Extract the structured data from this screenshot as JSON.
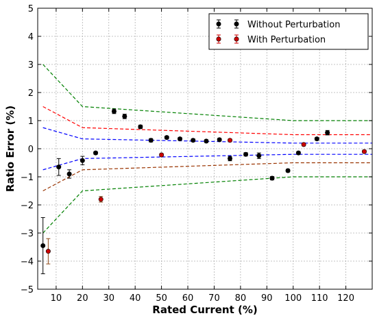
{
  "chart_data": {
    "type": "scatter",
    "title": "",
    "xlabel": "Rated Current (%)",
    "ylabel": "Ratio Error (%)",
    "xlim": [
      3,
      130
    ],
    "ylim": [
      -5,
      5
    ],
    "xticks": [
      10,
      20,
      30,
      40,
      50,
      60,
      70,
      80,
      90,
      100,
      110,
      120
    ],
    "yticks": [
      -5,
      -4,
      -3,
      -2,
      -1,
      0,
      1,
      2,
      3,
      4,
      5
    ],
    "grid": true,
    "legend_position": "top-right",
    "colors": {
      "without": "#000000",
      "with": "#cc0000",
      "outer_limit": "#008000",
      "mid_limit": "#ff0000",
      "inner_limit": "#0000ff",
      "lower_mid_limit": "#993300"
    },
    "series": [
      {
        "name": "Without Perturbation",
        "color": "#000000",
        "points": [
          {
            "x": 5,
            "y": -3.45,
            "err": 1.0
          },
          {
            "x": 11,
            "y": -0.65,
            "err": 0.3
          },
          {
            "x": 15,
            "y": -0.9,
            "err": 0.15
          },
          {
            "x": 20,
            "y": -0.42,
            "err": 0.15
          },
          {
            "x": 25,
            "y": -0.15,
            "err": 0.05
          },
          {
            "x": 32,
            "y": 1.33,
            "err": 0.08
          },
          {
            "x": 36,
            "y": 1.15,
            "err": 0.08
          },
          {
            "x": 42,
            "y": 0.78,
            "err": 0.06
          },
          {
            "x": 46,
            "y": 0.3,
            "err": 0.06
          },
          {
            "x": 52,
            "y": 0.4,
            "err": 0.05
          },
          {
            "x": 57,
            "y": 0.35,
            "err": 0.05
          },
          {
            "x": 62,
            "y": 0.3,
            "err": 0.05
          },
          {
            "x": 67,
            "y": 0.27,
            "err": 0.05
          },
          {
            "x": 72,
            "y": 0.32,
            "err": 0.05
          },
          {
            "x": 76,
            "y": -0.35,
            "err": 0.08
          },
          {
            "x": 82,
            "y": -0.2,
            "err": 0.06
          },
          {
            "x": 87,
            "y": -0.25,
            "err": 0.1
          },
          {
            "x": 92,
            "y": -1.05,
            "err": 0.06
          },
          {
            "x": 98,
            "y": -0.78,
            "err": 0.05
          },
          {
            "x": 102,
            "y": -0.15,
            "err": 0.05
          },
          {
            "x": 109,
            "y": 0.35,
            "err": 0.05
          },
          {
            "x": 113,
            "y": 0.57,
            "err": 0.08
          }
        ]
      },
      {
        "name": "With Perturbation",
        "color": "#cc0000",
        "points": [
          {
            "x": 7,
            "y": -3.65,
            "err": 0.45
          },
          {
            "x": 27,
            "y": -1.8,
            "err": 0.1
          },
          {
            "x": 50,
            "y": -0.22,
            "err": 0.05
          },
          {
            "x": 76,
            "y": 0.3,
            "err": 0.05
          },
          {
            "x": 104,
            "y": 0.15,
            "err": 0.05
          },
          {
            "x": 127,
            "y": -0.1,
            "err": 0.05
          }
        ]
      }
    ],
    "limit_lines": [
      {
        "color": "#008000",
        "x": [
          5,
          20,
          100,
          130
        ],
        "y": [
          3.0,
          1.5,
          1.0,
          1.0
        ]
      },
      {
        "color": "#008000",
        "x": [
          5,
          20,
          100,
          130
        ],
        "y": [
          -3.0,
          -1.5,
          -1.0,
          -1.0
        ]
      },
      {
        "color": "#ff0000",
        "x": [
          5,
          20,
          100,
          130
        ],
        "y": [
          1.5,
          0.75,
          0.5,
          0.5
        ]
      },
      {
        "color": "#993300",
        "x": [
          5,
          20,
          100,
          130
        ],
        "y": [
          -1.5,
          -0.75,
          -0.5,
          -0.5
        ]
      },
      {
        "color": "#0000ff",
        "x": [
          5,
          20,
          100,
          130
        ],
        "y": [
          0.75,
          0.35,
          0.2,
          0.2
        ]
      },
      {
        "color": "#0000ff",
        "x": [
          5,
          20,
          100,
          130
        ],
        "y": [
          -0.75,
          -0.35,
          -0.2,
          -0.2
        ]
      }
    ]
  }
}
